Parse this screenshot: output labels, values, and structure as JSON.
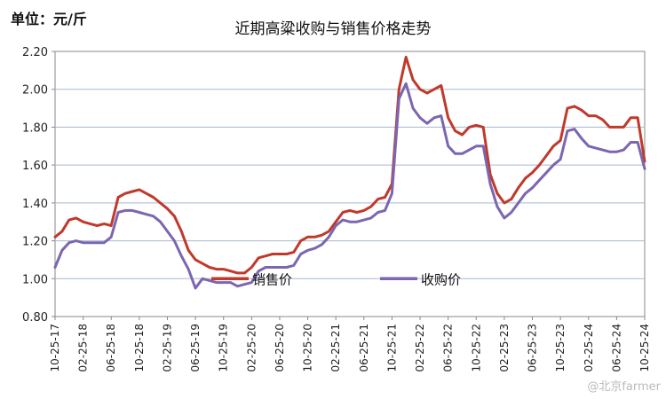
{
  "unit_label": "单位：元/斤",
  "watermark": "@北京farmer",
  "colors": {
    "sell": "#c0392b",
    "buy": "#7b66b0",
    "grid": "#a7b8d0",
    "axis": "#888888"
  },
  "chart_data": {
    "type": "line",
    "title": "近期高粱收购与销售价格走势",
    "xlabel": "",
    "ylabel": "",
    "ylim": [
      0.8,
      2.2
    ],
    "yticks": [
      0.8,
      1.0,
      1.2,
      1.4,
      1.6,
      1.8,
      2.0,
      2.2
    ],
    "ytick_labels": [
      "0.80",
      "1.00",
      "1.20",
      "1.40",
      "1.60",
      "1.80",
      "2.00",
      "2.20"
    ],
    "x_tick_labels": [
      "10-25-17",
      "02-25-18",
      "06-25-18",
      "10-25-18",
      "02-25-19",
      "06-25-19",
      "10-25-19",
      "02-25-20",
      "06-25-20",
      "10-25-20",
      "02-25-21",
      "06-25-21",
      "10-25-21",
      "02-25-22",
      "06-25-22",
      "10-25-22",
      "02-25-23",
      "06-25-23",
      "10-25-23",
      "02-25-24",
      "06-25-24",
      "10-25-24"
    ],
    "x_index_range": [
      0,
      84
    ],
    "legend_position": "inside-lower-middle",
    "series": [
      {
        "name": "销售价",
        "color": "#c0392b",
        "points": [
          [
            0,
            1.22
          ],
          [
            1,
            1.25
          ],
          [
            2,
            1.31
          ],
          [
            3,
            1.32
          ],
          [
            4,
            1.3
          ],
          [
            5,
            1.29
          ],
          [
            6,
            1.28
          ],
          [
            7,
            1.29
          ],
          [
            8,
            1.28
          ],
          [
            9,
            1.43
          ],
          [
            10,
            1.45
          ],
          [
            11,
            1.46
          ],
          [
            12,
            1.47
          ],
          [
            13,
            1.45
          ],
          [
            14,
            1.43
          ],
          [
            15,
            1.4
          ],
          [
            16,
            1.37
          ],
          [
            17,
            1.33
          ],
          [
            18,
            1.25
          ],
          [
            19,
            1.15
          ],
          [
            20,
            1.1
          ],
          [
            21,
            1.08
          ],
          [
            22,
            1.06
          ],
          [
            23,
            1.05
          ],
          [
            24,
            1.05
          ],
          [
            25,
            1.04
          ],
          [
            26,
            1.03
          ],
          [
            27,
            1.03
          ],
          [
            28,
            1.06
          ],
          [
            29,
            1.11
          ],
          [
            30,
            1.12
          ],
          [
            31,
            1.13
          ],
          [
            32,
            1.13
          ],
          [
            33,
            1.13
          ],
          [
            34,
            1.14
          ],
          [
            35,
            1.2
          ],
          [
            36,
            1.22
          ],
          [
            37,
            1.22
          ],
          [
            38,
            1.23
          ],
          [
            39,
            1.25
          ],
          [
            40,
            1.3
          ],
          [
            41,
            1.35
          ],
          [
            42,
            1.36
          ],
          [
            43,
            1.35
          ],
          [
            44,
            1.36
          ],
          [
            45,
            1.38
          ],
          [
            46,
            1.42
          ],
          [
            47,
            1.43
          ],
          [
            48,
            1.5
          ],
          [
            49,
            2.0
          ],
          [
            50,
            2.17
          ],
          [
            51,
            2.05
          ],
          [
            52,
            2.0
          ],
          [
            53,
            1.98
          ],
          [
            54,
            2.0
          ],
          [
            55,
            2.02
          ],
          [
            56,
            1.85
          ],
          [
            57,
            1.78
          ],
          [
            58,
            1.76
          ],
          [
            59,
            1.8
          ],
          [
            60,
            1.81
          ],
          [
            61,
            1.8
          ],
          [
            62,
            1.55
          ],
          [
            63,
            1.45
          ],
          [
            64,
            1.4
          ],
          [
            65,
            1.42
          ],
          [
            66,
            1.48
          ],
          [
            67,
            1.53
          ],
          [
            68,
            1.56
          ],
          [
            69,
            1.6
          ],
          [
            70,
            1.65
          ],
          [
            71,
            1.7
          ],
          [
            72,
            1.73
          ],
          [
            73,
            1.9
          ],
          [
            74,
            1.91
          ],
          [
            75,
            1.89
          ],
          [
            76,
            1.86
          ],
          [
            77,
            1.86
          ],
          [
            78,
            1.84
          ],
          [
            79,
            1.8
          ],
          [
            80,
            1.8
          ],
          [
            81,
            1.8
          ],
          [
            82,
            1.85
          ],
          [
            83,
            1.85
          ],
          [
            84,
            1.62
          ]
        ]
      },
      {
        "name": "收购价",
        "color": "#7b66b0",
        "points": [
          [
            0,
            1.06
          ],
          [
            1,
            1.15
          ],
          [
            2,
            1.19
          ],
          [
            3,
            1.2
          ],
          [
            4,
            1.19
          ],
          [
            5,
            1.19
          ],
          [
            6,
            1.19
          ],
          [
            7,
            1.19
          ],
          [
            8,
            1.22
          ],
          [
            9,
            1.35
          ],
          [
            10,
            1.36
          ],
          [
            11,
            1.36
          ],
          [
            12,
            1.35
          ],
          [
            13,
            1.34
          ],
          [
            14,
            1.33
          ],
          [
            15,
            1.3
          ],
          [
            16,
            1.25
          ],
          [
            17,
            1.2
          ],
          [
            18,
            1.12
          ],
          [
            19,
            1.05
          ],
          [
            20,
            0.95
          ],
          [
            21,
            1.0
          ],
          [
            22,
            0.99
          ],
          [
            23,
            0.98
          ],
          [
            24,
            0.98
          ],
          [
            25,
            0.98
          ],
          [
            26,
            0.96
          ],
          [
            27,
            0.97
          ],
          [
            28,
            0.98
          ],
          [
            29,
            1.04
          ],
          [
            30,
            1.06
          ],
          [
            31,
            1.06
          ],
          [
            32,
            1.06
          ],
          [
            33,
            1.06
          ],
          [
            34,
            1.07
          ],
          [
            35,
            1.13
          ],
          [
            36,
            1.15
          ],
          [
            37,
            1.16
          ],
          [
            38,
            1.18
          ],
          [
            39,
            1.22
          ],
          [
            40,
            1.28
          ],
          [
            41,
            1.31
          ],
          [
            42,
            1.3
          ],
          [
            43,
            1.3
          ],
          [
            44,
            1.31
          ],
          [
            45,
            1.32
          ],
          [
            46,
            1.35
          ],
          [
            47,
            1.36
          ],
          [
            48,
            1.45
          ],
          [
            49,
            1.95
          ],
          [
            50,
            2.03
          ],
          [
            51,
            1.9
          ],
          [
            52,
            1.85
          ],
          [
            53,
            1.82
          ],
          [
            54,
            1.85
          ],
          [
            55,
            1.86
          ],
          [
            56,
            1.7
          ],
          [
            57,
            1.66
          ],
          [
            58,
            1.66
          ],
          [
            59,
            1.68
          ],
          [
            60,
            1.7
          ],
          [
            61,
            1.7
          ],
          [
            62,
            1.5
          ],
          [
            63,
            1.38
          ],
          [
            64,
            1.32
          ],
          [
            65,
            1.35
          ],
          [
            66,
            1.4
          ],
          [
            67,
            1.45
          ],
          [
            68,
            1.48
          ],
          [
            69,
            1.52
          ],
          [
            70,
            1.56
          ],
          [
            71,
            1.6
          ],
          [
            72,
            1.63
          ],
          [
            73,
            1.78
          ],
          [
            74,
            1.79
          ],
          [
            75,
            1.74
          ],
          [
            76,
            1.7
          ],
          [
            77,
            1.69
          ],
          [
            78,
            1.68
          ],
          [
            79,
            1.67
          ],
          [
            80,
            1.67
          ],
          [
            81,
            1.68
          ],
          [
            82,
            1.72
          ],
          [
            83,
            1.72
          ],
          [
            84,
            1.58
          ]
        ]
      }
    ]
  }
}
